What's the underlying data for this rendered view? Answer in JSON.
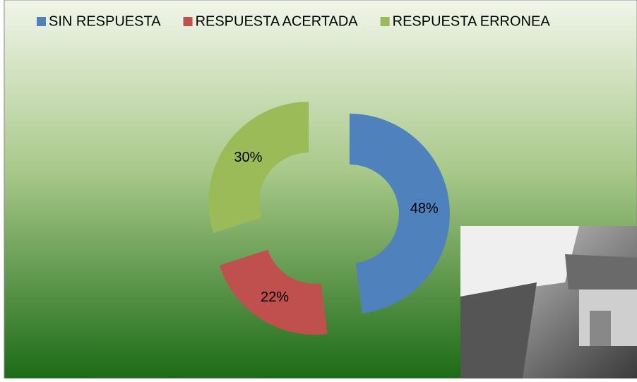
{
  "chart_data": {
    "type": "doughnut",
    "categories": [
      "SIN RESPUESTA",
      "RESPUESTA ACERTADA",
      "RESPUESTA ERRONEA"
    ],
    "values": [
      48,
      22,
      30
    ],
    "value_labels": [
      "48%",
      "22%",
      "30%"
    ],
    "colors": [
      "#4f81bd",
      "#c0504d",
      "#9bbb59"
    ],
    "legend": "top"
  }
}
